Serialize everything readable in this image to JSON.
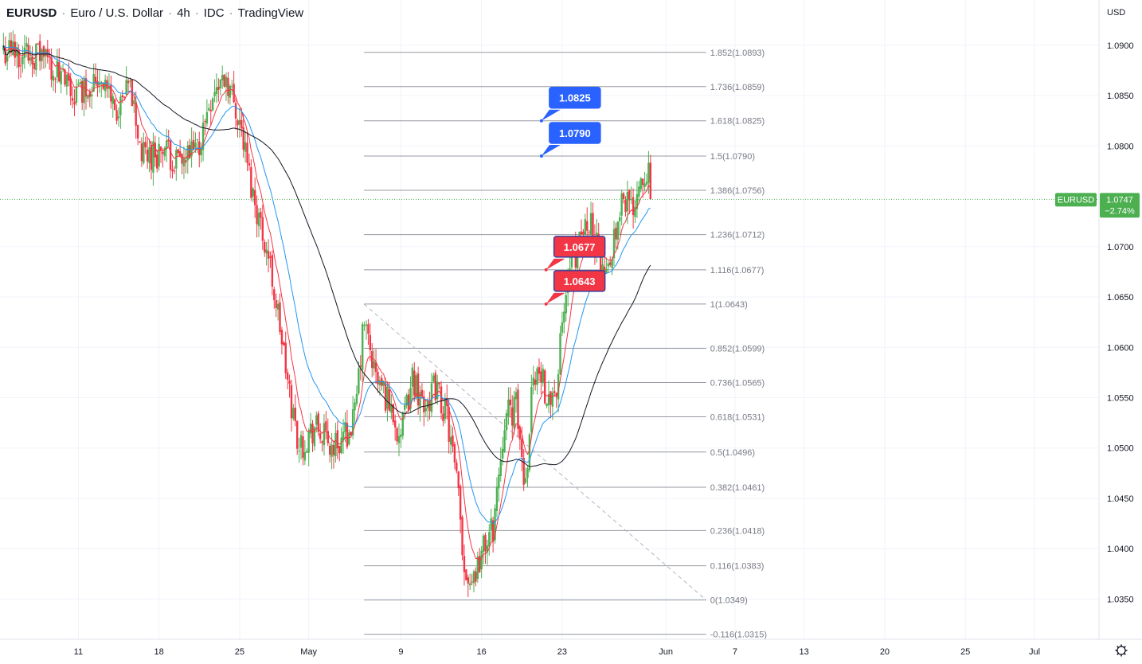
{
  "header": {
    "symbol": "EURUSD",
    "name": "Euro / U.S. Dollar",
    "interval": "4h",
    "source": "IDC",
    "platform": "TradingView",
    "separator": "·"
  },
  "colors": {
    "up": "#26a69a",
    "candle_up": "#4caf50",
    "candle_down": "#f23645",
    "ma_fast": "#f23645",
    "ma_mid": "#2196f3",
    "ma_slow": "#131722",
    "fib_line": "#9598a1",
    "price_tag": "#4caf50",
    "label_blue": "#2962ff",
    "label_red": "#f23645"
  },
  "chart_data": {
    "type": "candlestick",
    "y_unit": "USD",
    "ylim": [
      1.031,
      1.0945
    ],
    "y_ticks": [
      {
        "value": 1.09,
        "label": "1.0900"
      },
      {
        "value": 1.085,
        "label": "1.0850"
      },
      {
        "value": 1.08,
        "label": "1.0800"
      },
      {
        "value": 1.07,
        "label": "1.0700"
      },
      {
        "value": 1.065,
        "label": "1.0650"
      },
      {
        "value": 1.06,
        "label": "1.0600"
      },
      {
        "value": 1.055,
        "label": "1.0550"
      },
      {
        "value": 1.05,
        "label": "1.0500"
      },
      {
        "value": 1.045,
        "label": "1.0450"
      },
      {
        "value": 1.04,
        "label": "1.0400"
      },
      {
        "value": 1.035,
        "label": "1.0350"
      }
    ],
    "x_ticks": [
      {
        "day": 11,
        "label": "11"
      },
      {
        "day": 18,
        "label": "18"
      },
      {
        "day": 25,
        "label": "25"
      },
      {
        "day": 31,
        "label": "May"
      },
      {
        "day": 39,
        "label": "9"
      },
      {
        "day": 46,
        "label": "16"
      },
      {
        "day": 53,
        "label": "23"
      },
      {
        "day": 62,
        "label": "Jun"
      },
      {
        "day": 68,
        "label": "7"
      },
      {
        "day": 74,
        "label": "13"
      },
      {
        "day": 81,
        "label": "20"
      },
      {
        "day": 88,
        "label": "25"
      },
      {
        "day": 94,
        "label": "Jul"
      }
    ],
    "x_domain_days": [
      4.2,
      99.6
    ],
    "current_price": {
      "symbol": "EURUSD",
      "value": 1.0747,
      "label": "1.0747",
      "change": "−2.74%"
    },
    "fib_levels": [
      {
        "ratio": "1.852",
        "value": 1.0893,
        "label": "1.852(1.0893)"
      },
      {
        "ratio": "1.736",
        "value": 1.0859,
        "label": "1.736(1.0859)"
      },
      {
        "ratio": "1.618",
        "value": 1.0825,
        "label": "1.618(1.0825)"
      },
      {
        "ratio": "1.5",
        "value": 1.079,
        "label": "1.5(1.0790)"
      },
      {
        "ratio": "1.386",
        "value": 1.0756,
        "label": "1.386(1.0756)"
      },
      {
        "ratio": "1.236",
        "value": 1.0712,
        "label": "1.236(1.0712)"
      },
      {
        "ratio": "1.116",
        "value": 1.0677,
        "label": "1.116(1.0677)"
      },
      {
        "ratio": "1",
        "value": 1.0643,
        "label": "1(1.0643)"
      },
      {
        "ratio": "0.852",
        "value": 1.0599,
        "label": "0.852(1.0599)"
      },
      {
        "ratio": "0.736",
        "value": 1.0565,
        "label": "0.736(1.0565)"
      },
      {
        "ratio": "0.618",
        "value": 1.0531,
        "label": "0.618(1.0531)"
      },
      {
        "ratio": "0.5",
        "value": 1.0496,
        "label": "0.5(1.0496)"
      },
      {
        "ratio": "0.382",
        "value": 1.0461,
        "label": "0.382(1.0461)"
      },
      {
        "ratio": "0.236",
        "value": 1.0418,
        "label": "0.236(1.0418)"
      },
      {
        "ratio": "0.116",
        "value": 1.0383,
        "label": "0.116(1.0383)"
      },
      {
        "ratio": "0",
        "value": 1.0349,
        "label": "0(1.0349)"
      },
      {
        "ratio": "-0.116",
        "value": 1.0315,
        "label": "-0.116(1.0315)"
      }
    ],
    "fib_range_days": [
      35.8,
      65.5
    ],
    "trendline": {
      "start": {
        "day": 35.8,
        "value": 1.0643
      },
      "end": {
        "day": 65.5,
        "value": 1.0349
      }
    },
    "callouts": [
      {
        "text": "1.0825",
        "value": 1.0825,
        "day": 51.2,
        "color": "blue"
      },
      {
        "text": "1.0790",
        "value": 1.079,
        "day": 51.2,
        "color": "blue"
      },
      {
        "text": "1.0677",
        "value": 1.0677,
        "day": 51.6,
        "color": "red"
      },
      {
        "text": "1.0643",
        "value": 1.0643,
        "day": 51.6,
        "color": "red"
      }
    ],
    "anchors": [
      {
        "day": 4.5,
        "value": 1.0895
      },
      {
        "day": 8.0,
        "value": 1.089
      },
      {
        "day": 10.5,
        "value": 1.085
      },
      {
        "day": 13.0,
        "value": 1.087
      },
      {
        "day": 14.5,
        "value": 1.083
      },
      {
        "day": 15.5,
        "value": 1.086
      },
      {
        "day": 16.5,
        "value": 1.079
      },
      {
        "day": 18.5,
        "value": 1.0795
      },
      {
        "day": 20.0,
        "value": 1.078
      },
      {
        "day": 21.5,
        "value": 1.08
      },
      {
        "day": 22.5,
        "value": 1.085
      },
      {
        "day": 23.8,
        "value": 1.087
      },
      {
        "day": 25.0,
        "value": 1.0825
      },
      {
        "day": 26.0,
        "value": 1.076
      },
      {
        "day": 27.5,
        "value": 1.069
      },
      {
        "day": 28.5,
        "value": 1.062
      },
      {
        "day": 29.2,
        "value": 1.056
      },
      {
        "day": 30.2,
        "value": 1.05
      },
      {
        "day": 31.5,
        "value": 1.052
      },
      {
        "day": 33.0,
        "value": 1.05
      },
      {
        "day": 34.0,
        "value": 1.051
      },
      {
        "day": 35.0,
        "value": 1.053
      },
      {
        "day": 35.8,
        "value": 1.0625
      },
      {
        "day": 36.8,
        "value": 1.057
      },
      {
        "day": 38.0,
        "value": 1.0545
      },
      {
        "day": 39.0,
        "value": 1.051
      },
      {
        "day": 40.0,
        "value": 1.057
      },
      {
        "day": 41.0,
        "value": 1.0545
      },
      {
        "day": 42.0,
        "value": 1.056
      },
      {
        "day": 43.0,
        "value": 1.053
      },
      {
        "day": 44.0,
        "value": 1.045
      },
      {
        "day": 44.5,
        "value": 1.038
      },
      {
        "day": 45.2,
        "value": 1.037
      },
      {
        "day": 46.0,
        "value": 1.0395
      },
      {
        "day": 47.0,
        "value": 1.042
      },
      {
        "day": 48.0,
        "value": 1.053
      },
      {
        "day": 49.0,
        "value": 1.054
      },
      {
        "day": 49.8,
        "value": 1.046
      },
      {
        "day": 50.5,
        "value": 1.058
      },
      {
        "day": 51.5,
        "value": 1.056
      },
      {
        "day": 52.5,
        "value": 1.0555
      },
      {
        "day": 53.0,
        "value": 1.062
      },
      {
        "day": 53.8,
        "value": 1.069
      },
      {
        "day": 54.5,
        "value": 1.07
      },
      {
        "day": 55.3,
        "value": 1.073
      },
      {
        "day": 56.0,
        "value": 1.07
      },
      {
        "day": 56.8,
        "value": 1.0665
      },
      {
        "day": 57.5,
        "value": 1.0715
      },
      {
        "day": 58.3,
        "value": 1.0755
      },
      {
        "day": 59.0,
        "value": 1.0735
      },
      {
        "day": 59.8,
        "value": 1.077
      },
      {
        "day": 60.4,
        "value": 1.078
      },
      {
        "day": 60.8,
        "value": 1.0747
      }
    ]
  }
}
